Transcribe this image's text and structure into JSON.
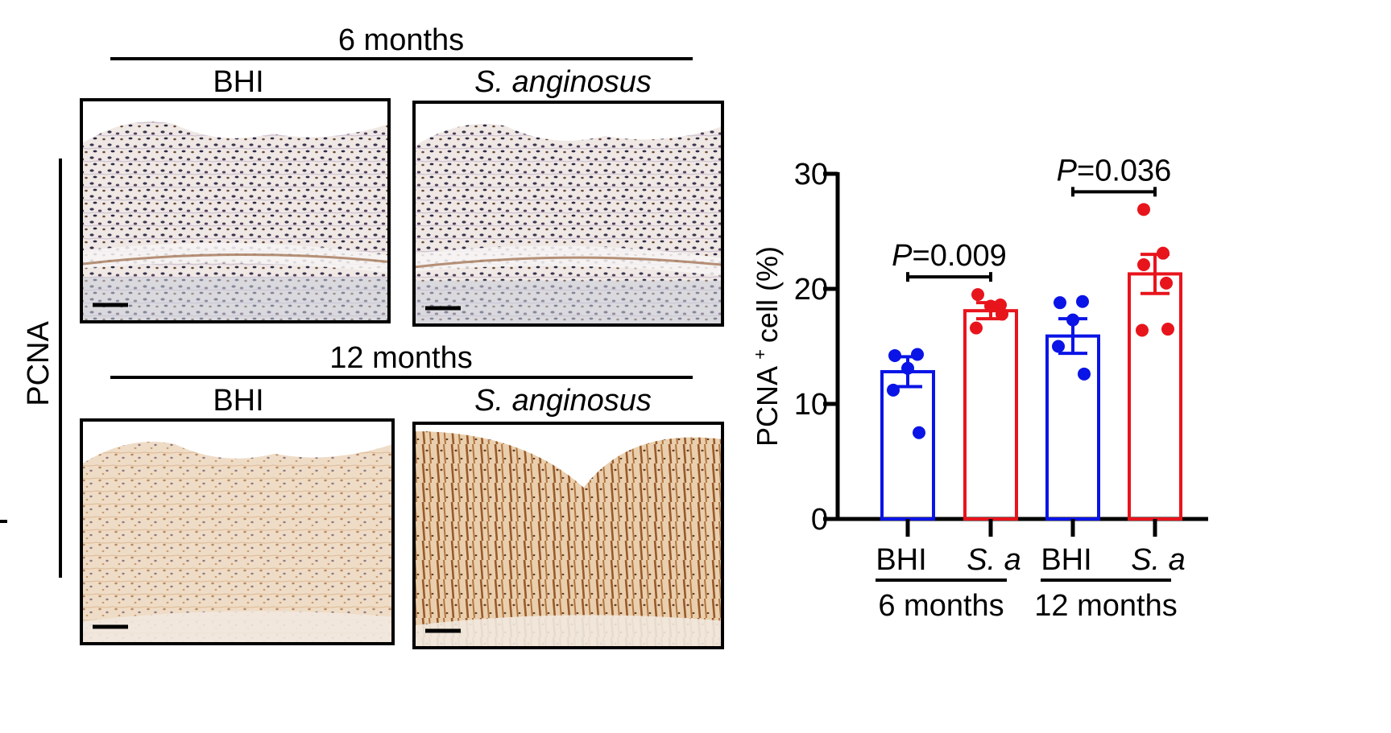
{
  "panels": {
    "row_label": "PCNA",
    "rows": [
      {
        "group": "6 months",
        "columns": [
          {
            "label": "BHI",
            "italic": false,
            "stain": "hematoxylin-dominant"
          },
          {
            "label": "S. anginosus",
            "italic": true,
            "stain": "hematoxylin-dominant"
          }
        ]
      },
      {
        "group": "12 months",
        "columns": [
          {
            "label": "BHI",
            "italic": false,
            "stain": "dab-light"
          },
          {
            "label": "S. anginosus",
            "italic": true,
            "stain": "dab-strong"
          }
        ]
      }
    ],
    "colors": {
      "tissue_background": "#f3ece6",
      "hematoxylin": "#3b3550",
      "dab": "#8a4f24",
      "dab_light": "#d9b48e"
    }
  },
  "chart_data": {
    "type": "bar",
    "ylabel": "PCNA",
    "ylabel_superscript": "+",
    "ylabel_suffix": "cell (%)",
    "ylim": [
      0,
      30
    ],
    "yticks": [
      0,
      10,
      20,
      30
    ],
    "categories": [
      "BHI",
      "S. a",
      "BHI",
      "S. a"
    ],
    "category_italic": [
      false,
      true,
      false,
      true
    ],
    "groups": [
      {
        "label": "6 months",
        "members": [
          0,
          1
        ]
      },
      {
        "label": "12 months",
        "members": [
          2,
          3
        ]
      }
    ],
    "series": [
      {
        "values": [
          12.8,
          18.1,
          15.9,
          21.3
        ],
        "sem": [
          1.3,
          0.7,
          1.5,
          1.7
        ],
        "colors": [
          "#0a14e6",
          "#e8141c",
          "#0a14e6",
          "#e8141c"
        ]
      }
    ],
    "points": [
      [
        14.2,
        14.3,
        13.1,
        11.2,
        7.5
      ],
      [
        19.5,
        18.6,
        18.5,
        16.6,
        17.8
      ],
      [
        18.8,
        18.9,
        17.3,
        15.0,
        12.6
      ],
      [
        26.9,
        23.1,
        22.1,
        20.5,
        16.4,
        16.5
      ]
    ],
    "comparisons": [
      {
        "between": [
          0,
          1
        ],
        "p_prefix": "P",
        "p_value": "=0.009"
      },
      {
        "between": [
          2,
          3
        ],
        "p_prefix": "P",
        "p_value": "=0.036"
      }
    ],
    "grid": false,
    "legend": "none"
  }
}
